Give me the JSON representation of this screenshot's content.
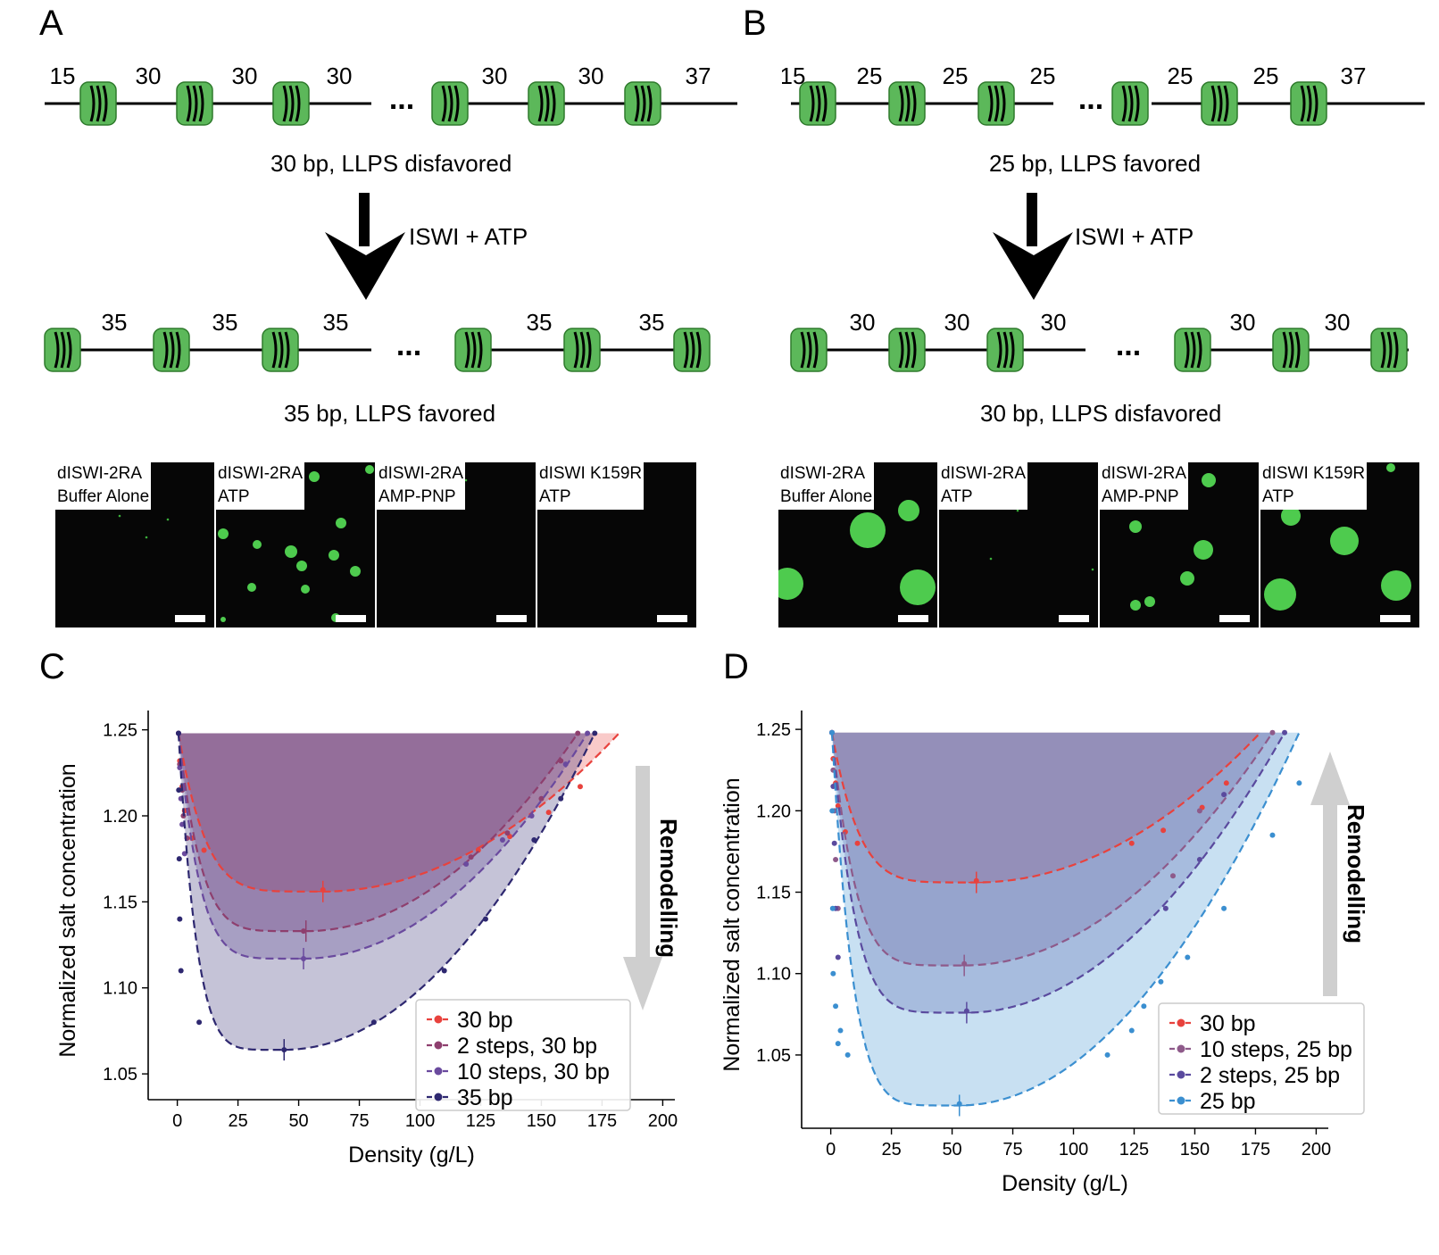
{
  "panels": {
    "A": {
      "letter": "A",
      "top_spacings": [
        "15",
        "30",
        "30",
        "30",
        "30",
        "30",
        "37"
      ],
      "top_caption": "30 bp, LLPS disfavored",
      "arrow_label": "ISWI + ATP",
      "bottom_spacings": [
        "35",
        "35",
        "35",
        "35",
        "35"
      ],
      "bottom_caption": "35 bp, LLPS favored",
      "ellipsis": "...",
      "micrographs": [
        {
          "label": "dISWI-2RA\nBuffer Alone"
        },
        {
          "label": "dISWI-2RA\nATP"
        },
        {
          "label": "dISWI-2RA\nAMP-PNP"
        },
        {
          "label": "dISWI K159R\nATP"
        }
      ]
    },
    "B": {
      "letter": "B",
      "top_spacings": [
        "15",
        "25",
        "25",
        "25",
        "25",
        "25",
        "37"
      ],
      "top_caption": "25 bp, LLPS favored",
      "arrow_label": "ISWI + ATP",
      "bottom_spacings": [
        "30",
        "30",
        "30",
        "30",
        "30"
      ],
      "bottom_caption": "30 bp, LLPS disfavored",
      "ellipsis": "...",
      "micrographs": [
        {
          "label": "dISWI-2RA\nBuffer Alone"
        },
        {
          "label": "dISWI-2RA\nATP"
        },
        {
          "label": "dISWI-2RA\nAMP-PNP"
        },
        {
          "label": "dISWI K159R\nATP"
        }
      ]
    }
  },
  "colors": {
    "nucleosome_fill": "#5cb85a",
    "droplet": "#4ecb4e",
    "red": "#e8423d",
    "plum": "#8e3f6e",
    "violet": "#6a4a9e",
    "navy": "#2e2870",
    "dot_purple": "#7a5aa8",
    "blue": "#3b8fd0",
    "arrow_gray": "#cfcfcf"
  },
  "chart_data": [
    {
      "panel": "C",
      "type": "line",
      "xlabel": "Density (g/L)",
      "ylabel": "Normalized salt concentration",
      "xlim": [
        -12,
        205
      ],
      "ylim": [
        1.035,
        1.255
      ],
      "xticks": [
        0,
        25,
        50,
        75,
        100,
        125,
        150,
        175,
        200
      ],
      "yticks": [
        1.05,
        1.1,
        1.15,
        1.2,
        1.25
      ],
      "annotation": "Remodelling",
      "arrow_direction": "down",
      "legend_position": "lower right",
      "series": [
        {
          "name": "30 bp",
          "color": "#e8423d",
          "rhoL_min": 0.5,
          "rhoH_max": 182,
          "ymin": 1.156,
          "xc": 60,
          "knee": 5.4,
          "shaded": true,
          "marker": "dot",
          "points": [
            [
              0.5,
              1.248
            ],
            [
              1,
              1.232
            ],
            [
              2,
              1.217
            ],
            [
              3,
              1.203
            ],
            [
              6,
              1.187
            ],
            [
              11,
              1.18
            ],
            [
              60,
              1.157
            ],
            [
              124,
              1.18
            ],
            [
              137,
              1.188
            ],
            [
              153,
              1.202
            ],
            [
              166,
              1.217
            ]
          ]
        },
        {
          "name": "2 steps, 30 bp",
          "color": "#8e3f6e",
          "rhoL_min": 0.5,
          "rhoH_max": 165,
          "ymin": 1.133,
          "xc": 53,
          "knee": 5.7,
          "shaded": true,
          "marker": "dot",
          "points": [
            [
              0.5,
              1.248
            ],
            [
              1,
              1.23
            ],
            [
              2,
              1.215
            ],
            [
              2.5,
              1.2
            ],
            [
              4,
              1.187
            ],
            [
              52,
              1.133
            ],
            [
              121,
              1.176
            ],
            [
              136,
              1.19
            ],
            [
              150,
              1.21
            ],
            [
              158,
              1.232
            ],
            [
              165,
              1.248
            ]
          ]
        },
        {
          "name": "10 steps, 30 bp",
          "color": "#6a4a9e",
          "rhoL_min": 0.5,
          "rhoH_max": 169,
          "ymin": 1.117,
          "xc": 52,
          "knee": 5.9,
          "shaded": true,
          "marker": "dot",
          "points": [
            [
              0.5,
              1.248
            ],
            [
              1,
              1.228
            ],
            [
              1.5,
              1.21
            ],
            [
              2,
              1.195
            ],
            [
              3,
              1.178
            ],
            [
              52,
              1.117
            ],
            [
              119,
              1.172
            ],
            [
              134,
              1.186
            ],
            [
              146,
              1.2
            ],
            [
              160,
              1.23
            ],
            [
              169,
              1.248
            ]
          ]
        },
        {
          "name": "35 bp",
          "color": "#2e2870",
          "rhoL_min": 0.5,
          "rhoH_max": 172,
          "ymin": 1.064,
          "xc": 44,
          "knee": 5.8,
          "shaded": true,
          "marker": "dot",
          "points": [
            [
              0.5,
              1.248
            ],
            [
              0.6,
              1.215
            ],
            [
              0.8,
              1.175
            ],
            [
              1,
              1.14
            ],
            [
              1.5,
              1.11
            ],
            [
              9,
              1.08
            ],
            [
              44,
              1.064
            ],
            [
              81,
              1.08
            ],
            [
              110,
              1.11
            ],
            [
              127,
              1.14
            ],
            [
              147,
              1.186
            ],
            [
              158,
              1.21
            ],
            [
              172,
              1.248
            ]
          ]
        }
      ]
    },
    {
      "panel": "D",
      "type": "line",
      "xlabel": "Density (g/L)",
      "ylabel": "Normalized salt concentration",
      "xlim": [
        -12,
        205
      ],
      "ylim": [
        1.005,
        1.255
      ],
      "xticks": [
        0,
        25,
        50,
        75,
        100,
        125,
        150,
        175,
        200
      ],
      "yticks": [
        1.05,
        1.1,
        1.15,
        1.2,
        1.25
      ],
      "annotation": "Remodelling",
      "arrow_direction": "up",
      "legend_position": "lower right",
      "series": [
        {
          "name": "30 bp",
          "color": "#e8423d",
          "rhoL_min": 0.5,
          "rhoH_max": 177,
          "ymin": 1.156,
          "xc": 60,
          "knee": 5.4,
          "shaded": true,
          "marker": "dot",
          "points": [
            [
              0.5,
              1.248
            ],
            [
              1,
              1.232
            ],
            [
              2,
              1.217
            ],
            [
              3,
              1.203
            ],
            [
              6,
              1.187
            ],
            [
              11,
              1.18
            ],
            [
              60,
              1.157
            ],
            [
              124,
              1.18
            ],
            [
              137,
              1.188
            ],
            [
              153,
              1.202
            ],
            [
              163,
              1.217
            ]
          ]
        },
        {
          "name": "10 steps, 25 bp",
          "color": "#8e5a8a",
          "rhoL_min": 0.5,
          "rhoH_max": 182,
          "ymin": 1.105,
          "xc": 55,
          "knee": 5.6,
          "shaded": true,
          "marker": "dot",
          "points": [
            [
              0.5,
              1.248
            ],
            [
              1,
              1.225
            ],
            [
              1.5,
              1.2
            ],
            [
              2,
              1.17
            ],
            [
              3,
              1.14
            ],
            [
              55,
              1.106
            ],
            [
              141,
              1.16
            ],
            [
              152,
              1.2
            ],
            [
              182,
              1.248
            ]
          ]
        },
        {
          "name": "2 steps, 25 bp",
          "color": "#5a4a9e",
          "rhoL_min": 0.5,
          "rhoH_max": 187,
          "ymin": 1.076,
          "xc": 56,
          "knee": 5.8,
          "shaded": true,
          "marker": "dot",
          "points": [
            [
              0.5,
              1.248
            ],
            [
              1,
              1.215
            ],
            [
              1.5,
              1.18
            ],
            [
              2,
              1.14
            ],
            [
              3,
              1.11
            ],
            [
              56,
              1.077
            ],
            [
              138,
              1.14
            ],
            [
              152,
              1.17
            ],
            [
              162,
              1.21
            ],
            [
              187,
              1.248
            ]
          ]
        },
        {
          "name": "25 bp",
          "color": "#3b8fd0",
          "rhoL_min": 0.5,
          "rhoH_max": 193,
          "ymin": 1.019,
          "xc": 53,
          "knee": 6.0,
          "shaded": true,
          "marker": "dot",
          "points": [
            [
              0.5,
              1.248
            ],
            [
              0.6,
              1.2
            ],
            [
              0.8,
              1.14
            ],
            [
              1,
              1.1
            ],
            [
              2,
              1.08
            ],
            [
              4,
              1.065
            ],
            [
              3,
              1.057
            ],
            [
              7,
              1.05
            ],
            [
              53,
              1.02
            ],
            [
              114,
              1.05
            ],
            [
              124,
              1.065
            ],
            [
              129,
              1.08
            ],
            [
              136,
              1.095
            ],
            [
              147,
              1.11
            ],
            [
              162,
              1.14
            ],
            [
              182,
              1.185
            ],
            [
              193,
              1.217
            ]
          ]
        }
      ]
    }
  ]
}
